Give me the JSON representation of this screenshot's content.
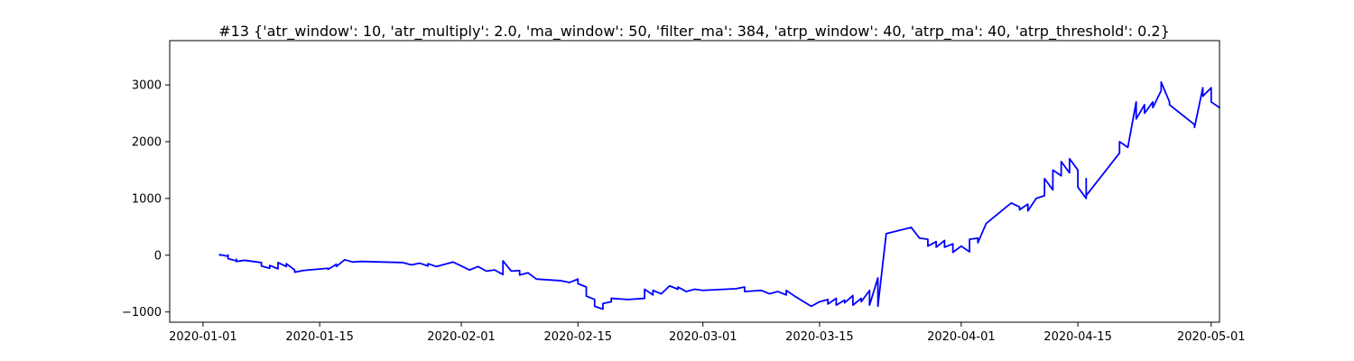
{
  "chart_data": {
    "type": "line",
    "title": "#13 {'atr_window': 10, 'atr_multiply': 2.0, 'ma_window': 50, 'filter_ma': 384, 'atrp_window': 40, 'atrp_ma': 40, 'atrp_threshold': 0.2}",
    "xlabel": "",
    "ylabel": "",
    "x_type": "date",
    "xlim": [
      "2019-12-28",
      "2020-05-02"
    ],
    "ylim": [
      -1180,
      3780
    ],
    "grid": false,
    "legend": "none",
    "x_ticks": [
      {
        "value": "2020-01-01",
        "label": "2020-01-01"
      },
      {
        "value": "2020-01-15",
        "label": "2020-01-15"
      },
      {
        "value": "2020-02-01",
        "label": "2020-02-01"
      },
      {
        "value": "2020-02-15",
        "label": "2020-02-15"
      },
      {
        "value": "2020-03-01",
        "label": "2020-03-01"
      },
      {
        "value": "2020-03-15",
        "label": "2020-03-15"
      },
      {
        "value": "2020-04-01",
        "label": "2020-04-01"
      },
      {
        "value": "2020-04-15",
        "label": "2020-04-15"
      },
      {
        "value": "2020-05-01",
        "label": "2020-05-01"
      }
    ],
    "y_ticks": [
      {
        "value": -1000,
        "label": "−1000"
      },
      {
        "value": 0,
        "label": "0"
      },
      {
        "value": 1000,
        "label": "1000"
      },
      {
        "value": 2000,
        "label": "2000"
      },
      {
        "value": 3000,
        "label": "3000"
      }
    ],
    "series": [
      {
        "color": "#0000ff",
        "points": [
          [
            "2020-01-03",
            0
          ],
          [
            "2020-01-03",
            10
          ],
          [
            "2020-01-04",
            -20
          ],
          [
            "2020-01-04",
            5
          ],
          [
            "2020-01-04",
            -60
          ],
          [
            "2020-01-05",
            -100
          ],
          [
            "2020-01-05",
            -70
          ],
          [
            "2020-01-05",
            -110
          ],
          [
            "2020-01-06",
            -90
          ],
          [
            "2020-01-08",
            -130
          ],
          [
            "2020-01-08",
            -190
          ],
          [
            "2020-01-09",
            -230
          ],
          [
            "2020-01-09",
            -180
          ],
          [
            "2020-01-10",
            -240
          ],
          [
            "2020-01-10",
            -130
          ],
          [
            "2020-01-11",
            -200
          ],
          [
            "2020-01-11",
            -150
          ],
          [
            "2020-01-12",
            -260
          ],
          [
            "2020-01-12",
            -300
          ],
          [
            "2020-01-13",
            -270
          ],
          [
            "2020-01-16",
            -230
          ],
          [
            "2020-01-16",
            -250
          ],
          [
            "2020-01-17",
            -160
          ],
          [
            "2020-01-17",
            -200
          ],
          [
            "2020-01-18",
            -80
          ],
          [
            "2020-01-19",
            -120
          ],
          [
            "2020-01-20",
            -110
          ],
          [
            "2020-01-25",
            -130
          ],
          [
            "2020-01-26",
            -170
          ],
          [
            "2020-01-27",
            -140
          ],
          [
            "2020-01-28",
            -190
          ],
          [
            "2020-01-28",
            -150
          ],
          [
            "2020-01-29",
            -200
          ],
          [
            "2020-01-31",
            -120
          ],
          [
            "2020-02-02",
            -260
          ],
          [
            "2020-02-03",
            -200
          ],
          [
            "2020-02-04",
            -280
          ],
          [
            "2020-02-05",
            -260
          ],
          [
            "2020-02-06",
            -340
          ],
          [
            "2020-02-06",
            -230
          ],
          [
            "2020-02-06",
            -100
          ],
          [
            "2020-02-07",
            -280
          ],
          [
            "2020-02-08",
            -270
          ],
          [
            "2020-02-08",
            -350
          ],
          [
            "2020-02-09",
            -310
          ],
          [
            "2020-02-10",
            -420
          ],
          [
            "2020-02-13",
            -450
          ],
          [
            "2020-02-14",
            -480
          ],
          [
            "2020-02-15",
            -420
          ],
          [
            "2020-02-15",
            -500
          ],
          [
            "2020-02-16",
            -560
          ],
          [
            "2020-02-16",
            -720
          ],
          [
            "2020-02-17",
            -780
          ],
          [
            "2020-02-17",
            -900
          ],
          [
            "2020-02-18",
            -950
          ],
          [
            "2020-02-18",
            -850
          ],
          [
            "2020-02-19",
            -820
          ],
          [
            "2020-02-19",
            -760
          ],
          [
            "2020-02-21",
            -780
          ],
          [
            "2020-02-23",
            -760
          ],
          [
            "2020-02-23",
            -600
          ],
          [
            "2020-02-24",
            -700
          ],
          [
            "2020-02-24",
            -620
          ],
          [
            "2020-02-25",
            -680
          ],
          [
            "2020-02-26",
            -540
          ],
          [
            "2020-02-27",
            -600
          ],
          [
            "2020-02-27",
            -560
          ],
          [
            "2020-02-28",
            -640
          ],
          [
            "2020-02-29",
            -600
          ],
          [
            "2020-03-01",
            -620
          ],
          [
            "2020-03-05",
            -590
          ],
          [
            "2020-03-06",
            -560
          ],
          [
            "2020-03-06",
            -640
          ],
          [
            "2020-03-08",
            -620
          ],
          [
            "2020-03-09",
            -680
          ],
          [
            "2020-03-10",
            -640
          ],
          [
            "2020-03-11",
            -700
          ],
          [
            "2020-03-11",
            -620
          ],
          [
            "2020-03-12",
            -720
          ],
          [
            "2020-03-14",
            -900
          ],
          [
            "2020-03-15",
            -820
          ],
          [
            "2020-03-16",
            -780
          ],
          [
            "2020-03-16",
            -860
          ],
          [
            "2020-03-17",
            -760
          ],
          [
            "2020-03-17",
            -880
          ],
          [
            "2020-03-18",
            -790
          ],
          [
            "2020-03-18",
            -840
          ],
          [
            "2020-03-19",
            -710
          ],
          [
            "2020-03-19",
            -880
          ],
          [
            "2020-03-20",
            -760
          ],
          [
            "2020-03-20",
            -820
          ],
          [
            "2020-03-21",
            -620
          ],
          [
            "2020-03-21",
            -880
          ],
          [
            "2020-03-22",
            -400
          ],
          [
            "2020-03-22",
            -900
          ],
          [
            "2020-03-23",
            380
          ],
          [
            "2020-03-26",
            490
          ],
          [
            "2020-03-27",
            300
          ],
          [
            "2020-03-28",
            280
          ],
          [
            "2020-03-28",
            160
          ],
          [
            "2020-03-29",
            240
          ],
          [
            "2020-03-29",
            140
          ],
          [
            "2020-03-30",
            260
          ],
          [
            "2020-03-30",
            140
          ],
          [
            "2020-03-31",
            200
          ],
          [
            "2020-03-31",
            50
          ],
          [
            "2020-04-01",
            160
          ],
          [
            "2020-04-02",
            60
          ],
          [
            "2020-04-02",
            280
          ],
          [
            "2020-04-03",
            300
          ],
          [
            "2020-04-03",
            220
          ],
          [
            "2020-04-04",
            560
          ],
          [
            "2020-04-07",
            920
          ],
          [
            "2020-04-08",
            850
          ],
          [
            "2020-04-08",
            800
          ],
          [
            "2020-04-09",
            900
          ],
          [
            "2020-04-09",
            780
          ],
          [
            "2020-04-10",
            1000
          ],
          [
            "2020-04-11",
            1050
          ],
          [
            "2020-04-11",
            1350
          ],
          [
            "2020-04-12",
            1150
          ],
          [
            "2020-04-12",
            1500
          ],
          [
            "2020-04-13",
            1400
          ],
          [
            "2020-04-13",
            1650
          ],
          [
            "2020-04-14",
            1450
          ],
          [
            "2020-04-14",
            1700
          ],
          [
            "2020-04-15",
            1500
          ],
          [
            "2020-04-15",
            1200
          ],
          [
            "2020-04-16",
            1000
          ],
          [
            "2020-04-16",
            1350
          ],
          [
            "2020-04-16",
            1050
          ],
          [
            "2020-04-20",
            1800
          ],
          [
            "2020-04-20",
            2000
          ],
          [
            "2020-04-21",
            1900
          ],
          [
            "2020-04-22",
            2700
          ],
          [
            "2020-04-22",
            2400
          ],
          [
            "2020-04-23",
            2650
          ],
          [
            "2020-04-23",
            2500
          ],
          [
            "2020-04-24",
            2700
          ],
          [
            "2020-04-24",
            2600
          ],
          [
            "2020-04-25",
            2900
          ],
          [
            "2020-04-25",
            3050
          ],
          [
            "2020-04-26",
            2700
          ],
          [
            "2020-04-26",
            2650
          ],
          [
            "2020-04-29",
            2300
          ],
          [
            "2020-04-29",
            2250
          ],
          [
            "2020-04-30",
            2950
          ],
          [
            "2020-04-30",
            2800
          ],
          [
            "2020-05-01",
            2950
          ],
          [
            "2020-05-01",
            2700
          ],
          [
            "2020-05-02",
            2600
          ]
        ]
      }
    ]
  }
}
